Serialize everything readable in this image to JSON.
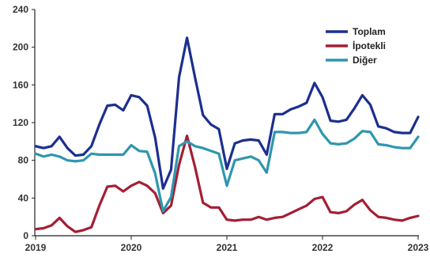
{
  "chart_data": {
    "type": "line",
    "title": "",
    "xlabel": "",
    "ylabel": "",
    "ylim": [
      0,
      240
    ],
    "yticks": [
      "0",
      "40",
      "80",
      "120",
      "160",
      "200",
      "240"
    ],
    "xticks": [
      "2019",
      "2020",
      "2021",
      "2022",
      "2023"
    ],
    "grid": false,
    "legend_position": "top-right",
    "x": [
      "2019-01",
      "2019-02",
      "2019-03",
      "2019-04",
      "2019-05",
      "2019-06",
      "2019-07",
      "2019-08",
      "2019-09",
      "2019-10",
      "2019-11",
      "2019-12",
      "2020-01",
      "2020-02",
      "2020-03",
      "2020-04",
      "2020-05",
      "2020-06",
      "2020-07",
      "2020-08",
      "2020-09",
      "2020-10",
      "2020-11",
      "2020-12",
      "2021-01",
      "2021-02",
      "2021-03",
      "2021-04",
      "2021-05",
      "2021-06",
      "2021-07",
      "2021-08",
      "2021-09",
      "2021-10",
      "2021-11",
      "2021-12",
      "2022-01",
      "2022-02",
      "2022-03",
      "2022-04",
      "2022-05",
      "2022-06",
      "2022-07",
      "2022-08",
      "2022-09",
      "2022-10",
      "2022-11",
      "2022-12",
      "2023-01"
    ],
    "series": [
      {
        "name": "Toplam",
        "color": "#1c2f8f",
        "values": [
          95,
          93,
          95,
          105,
          93,
          85,
          86,
          95,
          118,
          138,
          139,
          133,
          149,
          147,
          138,
          104,
          50,
          70,
          168,
          210,
          168,
          128,
          118,
          113,
          71,
          98,
          101,
          102,
          101,
          86,
          129,
          129,
          134,
          137,
          141,
          162,
          147,
          122,
          121,
          123,
          135,
          149,
          139,
          116,
          114,
          110,
          109,
          109,
          126
        ]
      },
      {
        "name": "İpotekli",
        "color": "#a31f34",
        "values": [
          7,
          8,
          11,
          19,
          10,
          4,
          6,
          9,
          32,
          52,
          53,
          47,
          53,
          57,
          53,
          45,
          24,
          32,
          75,
          106,
          73,
          35,
          30,
          30,
          17,
          16,
          17,
          17,
          20,
          17,
          19,
          20,
          24,
          28,
          32,
          39,
          41,
          25,
          24,
          26,
          33,
          38,
          27,
          20,
          19,
          17,
          16,
          19,
          21
        ]
      },
      {
        "name": "Diğer",
        "color": "#2f96ae",
        "values": [
          87,
          84,
          86,
          84,
          80,
          79,
          80,
          87,
          86,
          86,
          86,
          86,
          96,
          90,
          89,
          66,
          26,
          41,
          95,
          100,
          95,
          93,
          90,
          87,
          53,
          80,
          82,
          84,
          80,
          67,
          110,
          110,
          109,
          109,
          110,
          123,
          108,
          98,
          97,
          98,
          103,
          111,
          110,
          97,
          96,
          94,
          93,
          93,
          105
        ]
      }
    ]
  },
  "colors": {
    "axis": "#222222",
    "background": "#ffffff"
  }
}
